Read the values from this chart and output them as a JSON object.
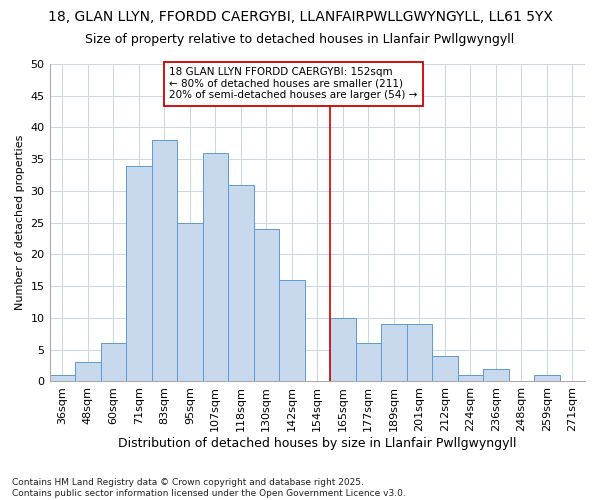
{
  "title1": "18, GLAN LLYN, FFORDD CAERGYBI, LLANFAIRPWLLGWYNGYLL, LL61 5YX",
  "title2": "Size of property relative to detached houses in Llanfair Pwllgwyngyll",
  "xlabel": "Distribution of detached houses by size in Llanfair Pwllgwyngyll",
  "ylabel": "Number of detached properties",
  "footnote": "Contains HM Land Registry data © Crown copyright and database right 2025.\nContains public sector information licensed under the Open Government Licence v3.0.",
  "bar_labels": [
    "36sqm",
    "48sqm",
    "60sqm",
    "71sqm",
    "83sqm",
    "95sqm",
    "107sqm",
    "118sqm",
    "130sqm",
    "142sqm",
    "154sqm",
    "165sqm",
    "177sqm",
    "189sqm",
    "201sqm",
    "212sqm",
    "224sqm",
    "236sqm",
    "248sqm",
    "259sqm",
    "271sqm"
  ],
  "bar_values": [
    1,
    3,
    6,
    34,
    38,
    25,
    36,
    31,
    24,
    16,
    0,
    10,
    6,
    9,
    9,
    4,
    1,
    2,
    0,
    1,
    0
  ],
  "bar_color": "#c9d9ed",
  "bar_edge_color": "#5b9bd5",
  "grid_color": "#c8d4e8",
  "background_color": "#ffffff",
  "plot_bg_color": "#ffffff",
  "vline_x_index": 10,
  "vline_color": "#cc0000",
  "annotation_text": "18 GLAN LLYN FFORDD CAERGYBI: 152sqm\n← 80% of detached houses are smaller (211)\n20% of semi-detached houses are larger (54) →",
  "annotation_box_color": "#ffffff",
  "annotation_box_edge": "#cc0000",
  "ylim": [
    0,
    50
  ],
  "yticks": [
    0,
    5,
    10,
    15,
    20,
    25,
    30,
    35,
    40,
    45,
    50
  ],
  "title1_fontsize": 10,
  "title2_fontsize": 9,
  "xlabel_fontsize": 9,
  "ylabel_fontsize": 8,
  "tick_fontsize": 8,
  "annot_fontsize": 7.5,
  "footnote_fontsize": 6.5
}
